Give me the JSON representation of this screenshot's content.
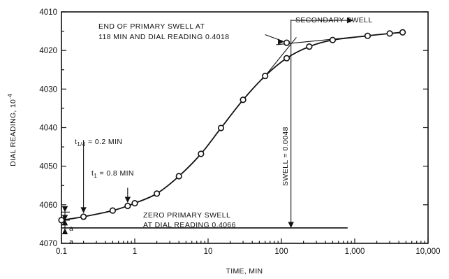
{
  "chart_data": {
    "type": "scatter",
    "title": "",
    "xlabel": "TIME, MIN",
    "ylabel_main": "DIAL READING, 10",
    "ylabel_exp": "-4",
    "x_scale": "log",
    "xlim": [
      0.1,
      10000
    ],
    "ylim": [
      4070,
      4010
    ],
    "y_inverted": true,
    "grid": false,
    "x_ticks": [
      {
        "value": 0.1,
        "label": "0.1"
      },
      {
        "value": 1,
        "label": "1"
      },
      {
        "value": 10,
        "label": "10"
      },
      {
        "value": 100,
        "label": "100"
      },
      {
        "value": 1000,
        "label": "1,000"
      },
      {
        "value": 10000,
        "label": "10,000"
      }
    ],
    "y_ticks": [
      {
        "value": 4010,
        "label": "4010"
      },
      {
        "value": 4020,
        "label": "4020"
      },
      {
        "value": 4030,
        "label": "4030"
      },
      {
        "value": 4040,
        "label": "4040"
      },
      {
        "value": 4050,
        "label": "4050"
      },
      {
        "value": 4060,
        "label": "4060"
      },
      {
        "value": 4070,
        "label": "4070"
      }
    ],
    "series": [
      {
        "points": [
          {
            "x": 0.1,
            "y": 4064.0
          },
          {
            "x": 0.2,
            "y": 4063.1
          },
          {
            "x": 0.5,
            "y": 4061.5
          },
          {
            "x": 0.8,
            "y": 4060.3
          },
          {
            "x": 1.0,
            "y": 4059.6
          },
          {
            "x": 2.0,
            "y": 4057.1
          },
          {
            "x": 4.0,
            "y": 4052.6
          },
          {
            "x": 8.0,
            "y": 4046.8
          },
          {
            "x": 15.0,
            "y": 4040.1
          },
          {
            "x": 30.0,
            "y": 4032.8
          },
          {
            "x": 60.0,
            "y": 4026.6
          },
          {
            "x": 118.0,
            "y": 4022.0
          },
          {
            "x": 240.0,
            "y": 4019.0
          },
          {
            "x": 500.0,
            "y": 4017.3
          },
          {
            "x": 1500.0,
            "y": 4016.2
          },
          {
            "x": 3000.0,
            "y": 4015.6
          },
          {
            "x": 4500.0,
            "y": 4015.3
          }
        ]
      }
    ],
    "constructions": {
      "zero_primary_swell_level": 4066,
      "end_primary_swell": {
        "x": 118,
        "y": 4018
      },
      "t_quarter": {
        "x": 0.2,
        "y": 4063
      },
      "t_one": {
        "x": 0.8,
        "y": 4060.3
      },
      "a_offset": 2.1
    },
    "annotations": {
      "end_primary_line1": "END OF PRIMARY SWELL AT",
      "end_primary_line2": "118 MIN AND DIAL READING 0.4018",
      "secondary": "SECONDARY SWELL",
      "swell": "SWELL = 0.0048",
      "t_quarter": "t",
      "t_quarter_sub": "1/4",
      "t_quarter_rest": " = 0.2 MIN",
      "t_one": "t",
      "t_one_sub": "1",
      "t_one_rest": " = 0.8 MIN",
      "zero_line1": "ZERO PRIMARY SWELL",
      "zero_line2": "AT DIAL READING 0.4066",
      "a_top": "a",
      "a_bottom": "a"
    }
  }
}
